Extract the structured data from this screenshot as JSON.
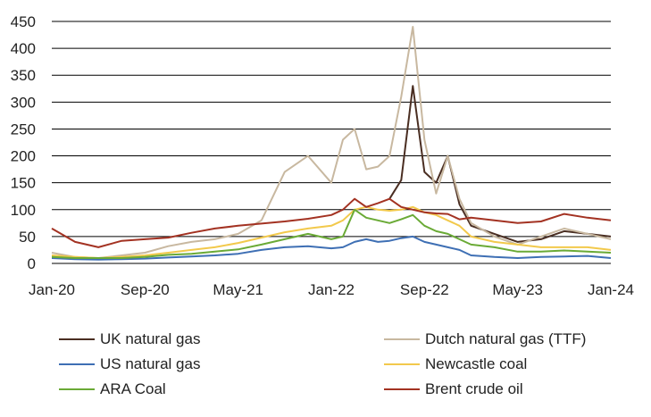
{
  "chart_data": {
    "type": "line",
    "title": "",
    "xlabel": "",
    "ylabel": "",
    "ylim": [
      0,
      450
    ],
    "yticks": [
      0,
      50,
      100,
      150,
      200,
      250,
      300,
      350,
      400,
      450
    ],
    "xlim": [
      "2020-01",
      "2024-01"
    ],
    "xticks": [
      "Jan-20",
      "Sep-20",
      "May-21",
      "Jan-22",
      "Sep-22",
      "May-23",
      "Jan-24"
    ],
    "grid": "horizontal",
    "legend_position": "bottom",
    "x": [
      "2020-01",
      "2020-03",
      "2020-05",
      "2020-07",
      "2020-09",
      "2020-11",
      "2021-01",
      "2021-03",
      "2021-05",
      "2021-07",
      "2021-09",
      "2021-11",
      "2022-01",
      "2022-02",
      "2022-03",
      "2022-04",
      "2022-05",
      "2022-06",
      "2022-07",
      "2022-08",
      "2022-09",
      "2022-10",
      "2022-11",
      "2022-12",
      "2023-01",
      "2023-03",
      "2023-05",
      "2023-07",
      "2023-09",
      "2023-11",
      "2024-01"
    ],
    "series": [
      {
        "name": "UK natural gas",
        "color": "#4a2e22",
        "values": [
          null,
          null,
          null,
          null,
          null,
          null,
          null,
          null,
          null,
          null,
          null,
          null,
          null,
          null,
          null,
          null,
          null,
          120,
          155,
          330,
          170,
          150,
          200,
          110,
          70,
          55,
          40,
          45,
          60,
          55,
          50
        ]
      },
      {
        "name": "Dutch natural gas (TTF)",
        "color": "#c8b8a0",
        "values": [
          20,
          12,
          10,
          15,
          20,
          32,
          40,
          45,
          55,
          80,
          170,
          200,
          150,
          230,
          250,
          175,
          180,
          200,
          310,
          440,
          230,
          130,
          200,
          120,
          75,
          50,
          35,
          50,
          65,
          55,
          45
        ]
      },
      {
        "name": "US natural gas",
        "color": "#3e6fb4",
        "values": [
          10,
          8,
          7,
          8,
          9,
          11,
          13,
          15,
          18,
          25,
          30,
          32,
          28,
          30,
          40,
          45,
          40,
          42,
          47,
          50,
          40,
          35,
          30,
          25,
          15,
          12,
          10,
          12,
          13,
          14,
          10
        ]
      },
      {
        "name": "Newcastle coal",
        "color": "#f2c94c",
        "values": [
          15,
          12,
          10,
          12,
          15,
          20,
          25,
          30,
          38,
          48,
          58,
          65,
          70,
          80,
          100,
          105,
          100,
          98,
          100,
          105,
          95,
          90,
          80,
          70,
          50,
          40,
          35,
          30,
          30,
          30,
          25
        ]
      },
      {
        "name": "ARA Coal",
        "color": "#6aaa36",
        "values": [
          12,
          10,
          10,
          10,
          12,
          16,
          18,
          22,
          26,
          35,
          45,
          55,
          45,
          50,
          100,
          85,
          80,
          75,
          82,
          90,
          70,
          60,
          55,
          45,
          35,
          30,
          22,
          22,
          24,
          22,
          20
        ]
      },
      {
        "name": "Brent crude oil",
        "color": "#a33222",
        "values": [
          65,
          40,
          30,
          42,
          45,
          48,
          57,
          65,
          70,
          74,
          78,
          83,
          90,
          100,
          120,
          105,
          112,
          120,
          105,
          100,
          95,
          93,
          92,
          82,
          85,
          80,
          75,
          78,
          92,
          85,
          80
        ]
      }
    ]
  }
}
